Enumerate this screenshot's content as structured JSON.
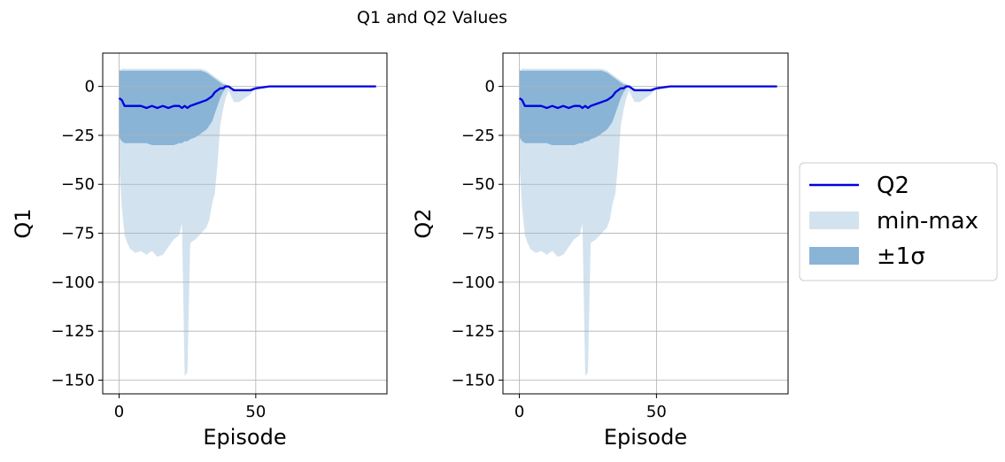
{
  "figure": {
    "suptitle": "Q1 and Q2 Values"
  },
  "colors": {
    "mean_line": "#0000e0",
    "minmax_fill": "#d2e3ef",
    "std_fill": "#89b4d6",
    "grid": "#b0b0b0"
  },
  "legend": {
    "items": [
      {
        "label": "Q2",
        "kind": "line"
      },
      {
        "label": "min-max",
        "kind": "minmax"
      },
      {
        "label": "±1σ",
        "kind": "std"
      }
    ],
    "placement": "right, outside plot"
  },
  "chart_data": [
    {
      "type": "area",
      "xlabel": "Episode",
      "ylabel": "Q1",
      "xlim": [
        -6,
        98
      ],
      "ylim": [
        -157,
        17
      ],
      "xticks": [
        0,
        50
      ],
      "yticks": [
        0,
        -25,
        -50,
        -75,
        -100,
        -125,
        -150
      ],
      "ytick_labels": [
        "0",
        "−25",
        "−50",
        "−75",
        "−100",
        "−125",
        "−150"
      ],
      "grid": true,
      "x": [
        0,
        1,
        2,
        3,
        4,
        6,
        8,
        10,
        12,
        14,
        16,
        18,
        20,
        22,
        23,
        24,
        25,
        26,
        28,
        30,
        32,
        33,
        34,
        35,
        36,
        37,
        38,
        39,
        40,
        41,
        42,
        44,
        46,
        48,
        50,
        55,
        60,
        70,
        80,
        94
      ],
      "mean": [
        -6,
        -7,
        -10,
        -10,
        -10,
        -10,
        -10,
        -11,
        -10,
        -11,
        -10,
        -11,
        -10,
        -10,
        -11,
        -10,
        -11,
        -10,
        -9,
        -8,
        -7,
        -6,
        -5,
        -3,
        -2,
        -1,
        -1,
        0,
        0,
        -1,
        -2,
        -2,
        -2,
        -2,
        -1,
        0,
        0,
        0,
        0,
        0
      ],
      "std_upper": [
        8,
        8,
        8,
        8,
        8,
        8,
        8,
        8,
        8,
        8,
        8,
        8,
        8,
        8,
        8,
        8,
        8,
        8,
        8,
        8,
        7,
        6,
        5,
        4,
        3,
        2,
        1,
        1,
        0,
        -1,
        -2,
        -2,
        -2,
        -2,
        -1,
        0,
        0,
        0,
        0,
        0
      ],
      "std_lower": [
        -26,
        -28,
        -29,
        -29,
        -29,
        -29,
        -29,
        -29,
        -30,
        -30,
        -30,
        -30,
        -30,
        -29,
        -29,
        -28,
        -28,
        -27,
        -26,
        -24,
        -22,
        -20,
        -18,
        -14,
        -10,
        -6,
        -3,
        -1,
        0,
        -1,
        -2,
        -2,
        -2,
        -2,
        -1,
        0,
        0,
        0,
        0,
        0
      ],
      "min": [
        -40,
        -62,
        -76,
        -80,
        -83,
        -85,
        -84,
        -86,
        -84,
        -87,
        -86,
        -82,
        -78,
        -76,
        -70,
        -148,
        -146,
        -80,
        -78,
        -75,
        -72,
        -68,
        -60,
        -55,
        -40,
        -20,
        -12,
        -6,
        -2,
        -5,
        -8,
        -8,
        -6,
        -4,
        -1,
        0,
        0,
        0,
        0,
        0
      ],
      "max": [
        8,
        9,
        9,
        9,
        9,
        9,
        9,
        9,
        9,
        9,
        9,
        9,
        9,
        9,
        9,
        9,
        9,
        9,
        9,
        9,
        8,
        7,
        6,
        5,
        4,
        3,
        2,
        1,
        0,
        -1,
        -1,
        -1,
        -1,
        -1,
        0,
        0,
        0,
        0,
        0,
        0
      ]
    },
    {
      "type": "area",
      "xlabel": "Episode",
      "ylabel": "Q2",
      "xlim": [
        -6,
        98
      ],
      "ylim": [
        -157,
        17
      ],
      "xticks": [
        0,
        50
      ],
      "yticks": [
        0,
        -25,
        -50,
        -75,
        -100,
        -125,
        -150
      ],
      "ytick_labels": [
        "0",
        "−25",
        "−50",
        "−75",
        "−100",
        "−125",
        "−150"
      ],
      "grid": true,
      "x": [
        0,
        1,
        2,
        3,
        4,
        6,
        8,
        10,
        12,
        14,
        16,
        18,
        20,
        22,
        23,
        24,
        25,
        26,
        28,
        30,
        32,
        33,
        34,
        35,
        36,
        37,
        38,
        39,
        40,
        41,
        42,
        44,
        46,
        48,
        50,
        55,
        60,
        70,
        80,
        94
      ],
      "mean": [
        -6,
        -7,
        -10,
        -10,
        -10,
        -10,
        -10,
        -11,
        -10,
        -11,
        -10,
        -11,
        -10,
        -10,
        -11,
        -10,
        -11,
        -10,
        -9,
        -8,
        -7,
        -6,
        -5,
        -3,
        -2,
        -1,
        -1,
        0,
        0,
        -1,
        -2,
        -2,
        -2,
        -2,
        -1,
        0,
        0,
        0,
        0,
        0
      ],
      "std_upper": [
        8,
        8,
        8,
        8,
        8,
        8,
        8,
        8,
        8,
        8,
        8,
        8,
        8,
        8,
        8,
        8,
        8,
        8,
        8,
        8,
        7,
        6,
        5,
        4,
        3,
        2,
        1,
        1,
        0,
        -1,
        -2,
        -2,
        -2,
        -2,
        -1,
        0,
        0,
        0,
        0,
        0
      ],
      "std_lower": [
        -26,
        -28,
        -29,
        -29,
        -29,
        -29,
        -29,
        -29,
        -30,
        -30,
        -30,
        -30,
        -30,
        -29,
        -29,
        -28,
        -28,
        -27,
        -26,
        -24,
        -22,
        -20,
        -18,
        -14,
        -10,
        -6,
        -3,
        -1,
        0,
        -1,
        -2,
        -2,
        -2,
        -2,
        -1,
        0,
        0,
        0,
        0,
        0
      ],
      "min": [
        -40,
        -62,
        -76,
        -80,
        -83,
        -85,
        -84,
        -86,
        -84,
        -87,
        -86,
        -82,
        -78,
        -76,
        -70,
        -148,
        -146,
        -80,
        -78,
        -75,
        -72,
        -68,
        -60,
        -55,
        -40,
        -20,
        -12,
        -6,
        -2,
        -5,
        -8,
        -8,
        -6,
        -4,
        -1,
        0,
        0,
        0,
        0,
        0
      ],
      "max": [
        8,
        9,
        9,
        9,
        9,
        9,
        9,
        9,
        9,
        9,
        9,
        9,
        9,
        9,
        9,
        9,
        9,
        9,
        9,
        9,
        8,
        7,
        6,
        5,
        4,
        3,
        2,
        1,
        0,
        -1,
        -1,
        -1,
        -1,
        -1,
        0,
        0,
        0,
        0,
        0,
        0
      ]
    }
  ]
}
